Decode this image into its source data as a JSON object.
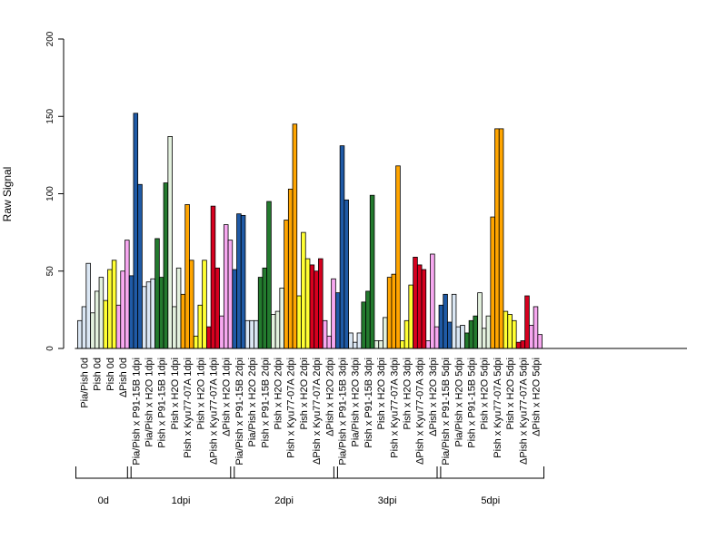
{
  "chart_data": {
    "type": "bar",
    "ylabel": "Raw Signal",
    "xlabel": "",
    "ylim": [
      0,
      200
    ],
    "yticks": [
      0,
      50,
      100,
      150,
      200
    ],
    "categories": [
      "Pia/Pish 0d",
      "Pish 0d",
      "Pish 0d",
      "ΔPish 0d",
      "Pia/Pish x P91-15B 1dpi",
      "Pia/Pish x H2O 1dpi",
      "Pish x P91-15B 1dpi",
      "Pish x H2O 1dpi",
      "Pish x Kyu77-07A 1dpi",
      "Pish x H2O 1dpi",
      "ΔPish x Kyu77-07A 1dpi",
      "ΔPish x H2O 1dpi",
      "Pia/Pish x P91-15B 2dpi",
      "Pia/Pish x H2O 2dpi",
      "Pish x P91-15B 2dpi",
      "Pish x H2O 2dpi",
      "Pish x Kyu77-07A 2dpi",
      "Pish x H2O 2dpi",
      "ΔPish x Kyu77-07A 2dpi",
      "ΔPish x H2O 2dpi",
      "Pia/Pish x P91-15B 3dpi",
      "Pia/Pish x H2O 3dpi",
      "Pish x P91-15B 3dpi",
      "Pish x H2O 3dpi",
      "Pish x Kyu77-07A 3dpi",
      "Pish x H2O 3dpi",
      "ΔPish x Kyu77-07A 3dpi",
      "ΔPish x H2O 3dpi",
      "Pia/Pish x P91-15B 5dpi",
      "Pia/Pish x H2O 5dpi",
      "Pish x P91-15B 5dpi",
      "Pish x H2O 5dpi",
      "Pish x Kyu77-07A 5dpi",
      "Pish x H2O 5dpi",
      "ΔPish x Kyu77-07A 5dpi",
      "ΔPish x H2O 5dpi"
    ],
    "colors": [
      "#dbe7f4",
      "#e3f1de",
      "#ffff33",
      "#f7a8f0",
      "#1f5aa6",
      "#dbe7f4",
      "#237a2e",
      "#e3f1de",
      "#ffa500",
      "#ffff33",
      "#d7001f",
      "#f7a8f0",
      "#1f5aa6",
      "#dbe7f4",
      "#237a2e",
      "#e3f1de",
      "#ffa500",
      "#ffff33",
      "#d7001f",
      "#f7a8f0",
      "#1f5aa6",
      "#dbe7f4",
      "#237a2e",
      "#e3f1de",
      "#ffa500",
      "#ffff33",
      "#d7001f",
      "#f7a8f0",
      "#1f5aa6",
      "#dbe7f4",
      "#237a2e",
      "#e3f1de",
      "#ffa500",
      "#ffff33",
      "#d7001f",
      "#f7a8f0"
    ],
    "replicates": [
      [
        18,
        27,
        55
      ],
      [
        23,
        37,
        46
      ],
      [
        31,
        51,
        57
      ],
      [
        28,
        50,
        70
      ],
      [
        47,
        152,
        106
      ],
      [
        40,
        43,
        45
      ],
      [
        71,
        46,
        107
      ],
      [
        137,
        27,
        52
      ],
      [
        35,
        93,
        57
      ],
      [
        8,
        28,
        57
      ],
      [
        14,
        92,
        52
      ],
      [
        21,
        80,
        70
      ],
      [
        51,
        87,
        86
      ],
      [
        18,
        18,
        18
      ],
      [
        46,
        52,
        95
      ],
      [
        22,
        24,
        39
      ],
      [
        83,
        103,
        145
      ],
      [
        34,
        75,
        58
      ],
      [
        54,
        50,
        58
      ],
      [
        18,
        8,
        45
      ],
      [
        36,
        131,
        96
      ],
      [
        10,
        4,
        10
      ],
      [
        30,
        37,
        99
      ],
      [
        5,
        5,
        20
      ],
      [
        46,
        48,
        118
      ],
      [
        5,
        18,
        41
      ],
      [
        59,
        54,
        51
      ],
      [
        5,
        61,
        14
      ],
      [
        28,
        35,
        17
      ],
      [
        35,
        14,
        15
      ],
      [
        10,
        18,
        21
      ],
      [
        36,
        13,
        21
      ],
      [
        85,
        142,
        142
      ],
      [
        24,
        22,
        18
      ],
      [
        4,
        5,
        34
      ],
      [
        15,
        27,
        9
      ]
    ],
    "groups": [
      {
        "label": "0d",
        "start": 0,
        "end": 3
      },
      {
        "label": "1dpi",
        "start": 4,
        "end": 11
      },
      {
        "label": "2dpi",
        "start": 12,
        "end": 19
      },
      {
        "label": "3dpi",
        "start": 20,
        "end": 27
      },
      {
        "label": "5dpi",
        "start": 28,
        "end": 35
      }
    ],
    "grid": false,
    "legend": "none"
  }
}
